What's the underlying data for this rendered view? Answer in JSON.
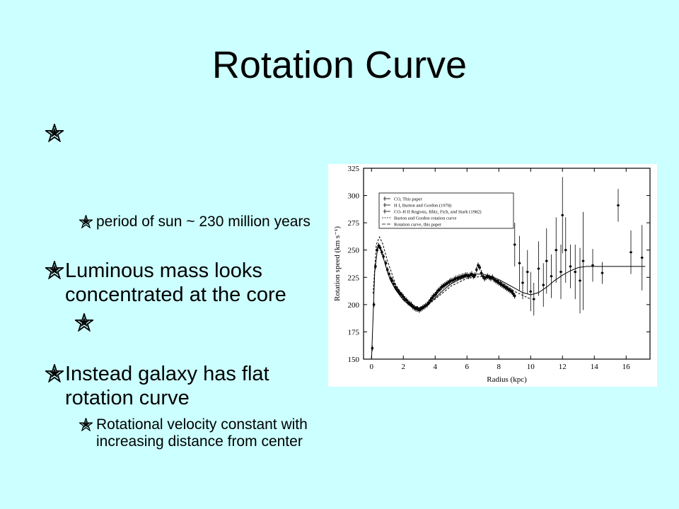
{
  "slide": {
    "title": "Rotation Curve",
    "bullets": [
      {
        "text": "",
        "subs": [
          {
            "text": "period of sun ~ 230 million years"
          }
        ]
      },
      {
        "text": "Luminous mass looks concentrated at the core",
        "subs": [
          {
            "text": ""
          }
        ]
      },
      {
        "text": "Instead galaxy has flat rotation curve",
        "subs": [
          {
            "text": "Rotational velocity constant with increasing distance from center"
          }
        ]
      }
    ]
  },
  "chart_data": {
    "type": "scatter",
    "xlabel": "Radius (kpc)",
    "ylabel": "Rotation speed (km s⁻¹)",
    "xlim": [
      -0.5,
      17.5
    ],
    "ylim": [
      150,
      325
    ],
    "xticks": [
      0,
      2,
      4,
      6,
      8,
      10,
      12,
      14,
      16
    ],
    "yticks": [
      150,
      175,
      200,
      225,
      250,
      275,
      300,
      325
    ],
    "legend": {
      "placement": "top-left",
      "entries": [
        "CO, This paper",
        "H I, Burton and Gordon (1978)",
        "CO–H II Regions, Blitz, Fich, and Stark (1982)",
        "Burton and Gordon rotation curve",
        "Rotation curve, this paper"
      ]
    },
    "series": [
      {
        "name": "Rotation curve, this paper",
        "style": "solid",
        "x": [
          0,
          0.2,
          0.4,
          0.6,
          0.8,
          1.0,
          1.2,
          1.5,
          2.0,
          2.5,
          3.0,
          3.5,
          4.0,
          4.5,
          5.0,
          5.5,
          6.0,
          6.5,
          7.0,
          7.5,
          8.0,
          8.5,
          9.0,
          9.5,
          10.0,
          10.5,
          11.0,
          11.5,
          12.0,
          12.5,
          13.0,
          13.5,
          14.0,
          15.0,
          16.0,
          17.2
        ],
        "y": [
          150,
          230,
          254,
          250,
          240,
          230,
          222,
          214,
          204,
          198,
          197,
          200,
          206,
          213,
          219,
          223,
          226,
          228,
          228,
          226,
          223,
          219,
          215,
          211,
          209,
          211,
          216,
          222,
          227,
          231,
          234,
          235,
          235,
          235,
          235,
          235
        ]
      },
      {
        "name": "Burton and Gordon rotation curve",
        "style": "dashed",
        "x": [
          0.1,
          0.3,
          0.5,
          0.7,
          1.0,
          1.5,
          2.0,
          2.5,
          3.0,
          3.5,
          4.0,
          5.0,
          6.0,
          7.0,
          8.0,
          9.0,
          10.0
        ],
        "y": [
          210,
          255,
          262,
          256,
          240,
          219,
          207,
          200,
          197,
          199,
          205,
          217,
          224,
          226,
          222,
          212,
          205
        ]
      },
      {
        "name": "CO, This paper",
        "style": "points",
        "x": [
          0.05,
          0.15,
          0.25,
          0.35,
          0.45,
          0.55,
          0.65,
          0.75,
          0.9,
          1.0,
          1.1,
          1.2,
          1.3,
          1.4,
          1.5,
          1.6,
          1.7,
          1.8,
          1.9,
          2.0,
          2.1,
          2.2,
          2.3,
          2.4,
          2.5,
          2.6,
          2.7,
          2.8,
          2.9,
          3.0,
          3.1,
          3.2,
          3.3,
          3.4,
          3.5,
          3.6,
          3.7,
          3.8,
          3.9,
          4.0,
          4.1,
          4.2,
          4.3,
          4.4,
          4.5,
          4.6,
          4.7,
          4.8,
          4.9,
          5.0,
          5.1,
          5.2,
          5.3,
          5.4,
          5.5,
          5.6,
          5.7,
          5.8,
          5.9,
          6.0,
          6.1,
          6.2,
          6.3,
          6.4,
          6.5,
          6.6,
          6.7,
          6.8,
          6.9,
          7.0,
          7.1,
          7.2,
          7.3,
          7.4,
          7.5,
          7.6,
          7.7,
          7.8,
          7.9,
          8.0,
          8.1,
          8.2,
          8.3,
          8.4,
          8.5,
          8.6,
          8.7,
          8.8,
          8.9,
          9.0
        ],
        "y": [
          160,
          200,
          235,
          250,
          254,
          252,
          248,
          244,
          238,
          232,
          228,
          224,
          222,
          219,
          216,
          214,
          212,
          210,
          209,
          207,
          205,
          204,
          202,
          201,
          200,
          198,
          197,
          196,
          196,
          195,
          196,
          197,
          198,
          199,
          200,
          202,
          204,
          206,
          208,
          209,
          211,
          213,
          214,
          216,
          217,
          218,
          219,
          220,
          221,
          222,
          222,
          223,
          224,
          224,
          225,
          225,
          226,
          226,
          227,
          227,
          226,
          227,
          228,
          226,
          227,
          232,
          236,
          234,
          229,
          226,
          224,
          225,
          226,
          225,
          224,
          225,
          223,
          222,
          221,
          220,
          219,
          218,
          217,
          216,
          215,
          214,
          213,
          212,
          210,
          208
        ]
      },
      {
        "name": "CO–H II Regions, Blitz, Fich, and Stark (1982)",
        "style": "errorbars",
        "x": [
          9.0,
          9.3,
          9.5,
          9.8,
          10.0,
          10.2,
          10.5,
          10.8,
          11.0,
          11.3,
          11.6,
          11.9,
          12.0,
          12.2,
          12.5,
          12.8,
          13.1,
          13.3,
          13.9,
          14.5,
          15.5,
          16.3,
          17.0
        ],
        "y": [
          255,
          238,
          220,
          230,
          212,
          205,
          233,
          218,
          240,
          226,
          250,
          230,
          282,
          250,
          235,
          230,
          222,
          240,
          236,
          229,
          291,
          248,
          243
        ],
        "err": [
          20,
          25,
          15,
          20,
          18,
          15,
          25,
          20,
          30,
          20,
          30,
          25,
          35,
          30,
          20,
          25,
          30,
          45,
          15,
          10,
          15,
          20,
          30
        ]
      }
    ]
  }
}
